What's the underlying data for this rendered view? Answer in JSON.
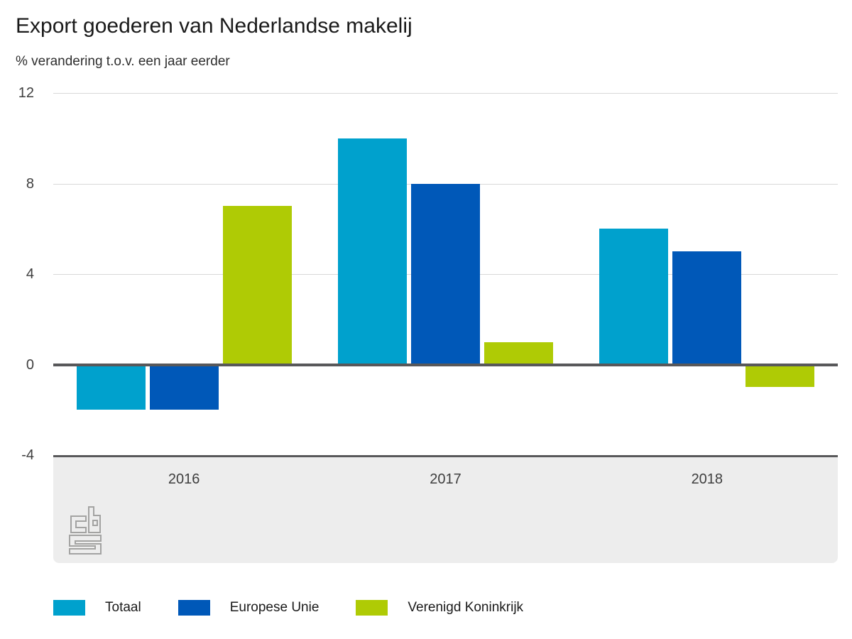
{
  "chart_data": {
    "type": "bar",
    "title": "Export goederen van Nederlandse makelij",
    "subtitle": "% verandering t.o.v. een jaar eerder",
    "categories": [
      "2016",
      "2017",
      "2018"
    ],
    "series": [
      {
        "name": "Totaal",
        "color": "#00a1cd",
        "values": [
          -2,
          10,
          6
        ]
      },
      {
        "name": "Europese Unie",
        "color": "#0058b8",
        "values": [
          -2,
          8,
          5
        ]
      },
      {
        "name": "Verenigd Koninkrijk",
        "color": "#afcb05",
        "values": [
          7,
          1,
          -1
        ]
      }
    ],
    "yticks": [
      12,
      8,
      4,
      0,
      -4
    ],
    "ylim": [
      -4,
      12
    ],
    "grid": true,
    "zero_line_color": "#58585a",
    "legend_position": "bottom",
    "source_logo": "CBS"
  }
}
